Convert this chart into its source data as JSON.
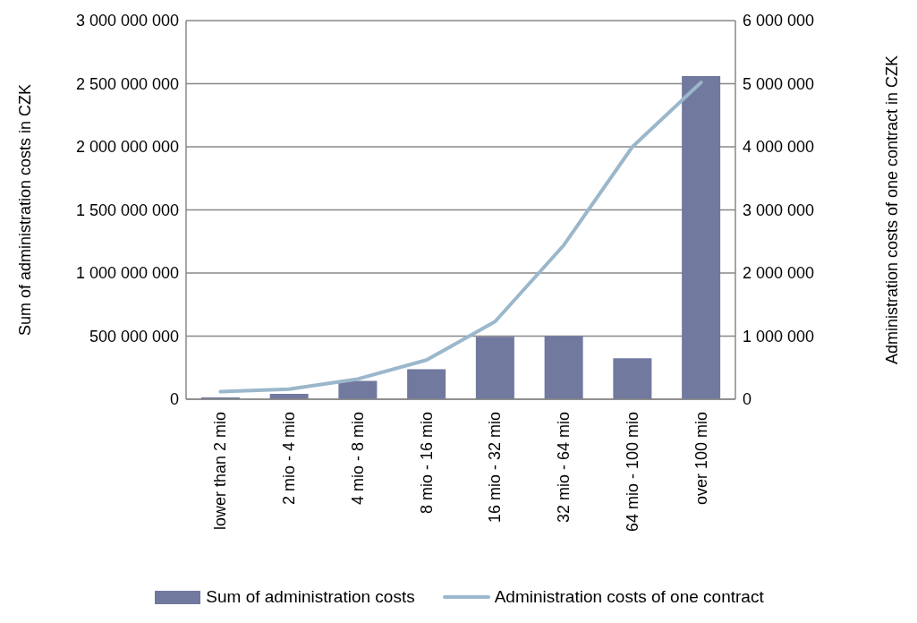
{
  "chart_data": {
    "type": "bar",
    "ylabel": "Sum of administration costs in CZK",
    "y2label": "Administration costs of one contract in CZK",
    "categories": [
      "lower than 2 mio",
      "2 mio - 4 mio",
      "4 mio - 8 mio",
      "8 mio - 16 mio",
      "16 mio - 32 mio",
      "32 mio - 64 mio",
      "64 mio - 100 mio",
      "over 100 mio"
    ],
    "series": [
      {
        "name": "Sum of administration costs",
        "color": "#71799f",
        "values": [
          15000000,
          43000000,
          145000000,
          237000000,
          495000000,
          500000000,
          325000000,
          2560000000
        ]
      },
      {
        "name": "Administration costs of one contract",
        "type": "line",
        "axis": "y2",
        "color": "#9bb7cb",
        "values": [
          120000,
          160000,
          320000,
          620000,
          1230000,
          2440000,
          4000000,
          5020000
        ]
      }
    ],
    "ylim": [
      0,
      3000000000
    ],
    "yticks": [
      0,
      500000000,
      1000000000,
      1500000000,
      2000000000,
      2500000000,
      3000000000
    ],
    "y2lim": [
      0,
      6000000
    ],
    "y2ticks": [
      0,
      1000000,
      2000000,
      3000000,
      4000000,
      5000000,
      6000000
    ],
    "grid": "y",
    "legend": "bottom",
    "marker": "none"
  }
}
